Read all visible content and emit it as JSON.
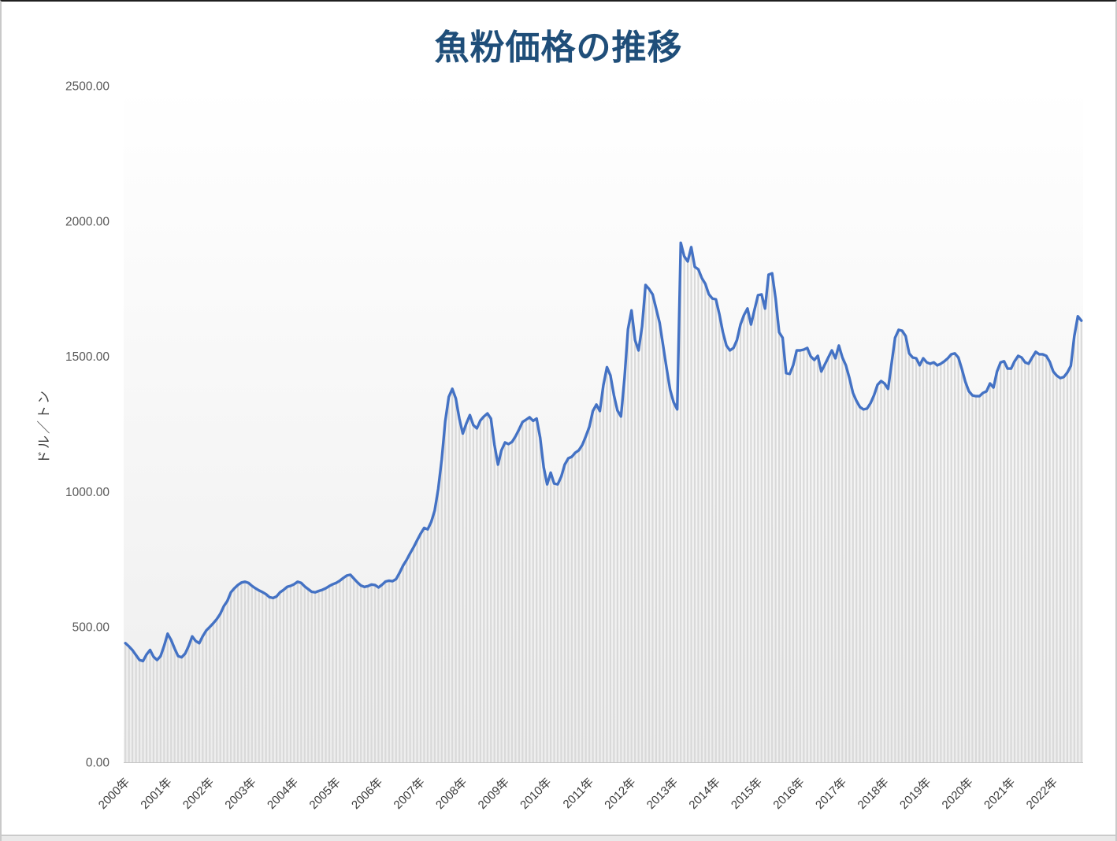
{
  "chart_data": {
    "type": "line",
    "title": "魚粉価格の推移",
    "ylabel": "ドル／トン",
    "xlabel": "",
    "ylim": [
      0,
      2500
    ],
    "grid": false,
    "legend_position": "none",
    "frequency": "monthly",
    "y_ticks": [
      "0.00",
      "500.00",
      "1000.00",
      "1500.00",
      "2000.00",
      "2500.00"
    ],
    "x_tick_labels": [
      "2000年",
      "2001年",
      "2002年",
      "2003年",
      "2004年",
      "2005年",
      "2006年",
      "2007年",
      "2008年",
      "2009年",
      "2010年",
      "2011年",
      "2012年",
      "2013年",
      "2014年",
      "2015年",
      "2016年",
      "2017年",
      "2018年",
      "2019年",
      "2020年",
      "2021年",
      "2022年"
    ],
    "x_tick_interval_months": 12,
    "series": [
      {
        "name": "魚粉価格",
        "unit": "ドル／トン",
        "first_month": "2000年1月",
        "last_month": "2022年9月",
        "monthly_values": [
          440,
          428,
          414,
          396,
          378,
          374,
          398,
          415,
          390,
          378,
          392,
          430,
          475,
          452,
          420,
          392,
          388,
          402,
          430,
          465,
          448,
          440,
          466,
          487,
          500,
          514,
          529,
          549,
          577,
          596,
          628,
          643,
          655,
          664,
          667,
          663,
          652,
          643,
          635,
          629,
          621,
          610,
          607,
          613,
          628,
          637,
          648,
          652,
          658,
          667,
          663,
          650,
          640,
          630,
          628,
          633,
          637,
          643,
          651,
          658,
          663,
          671,
          681,
          690,
          693,
          679,
          665,
          653,
          648,
          651,
          657,
          655,
          646,
          656,
          668,
          671,
          669,
          677,
          700,
          727,
          748,
          772,
          795,
          820,
          845,
          866,
          861,
          888,
          930,
          1010,
          1120,
          1260,
          1350,
          1380,
          1345,
          1270,
          1215,
          1252,
          1283,
          1246,
          1234,
          1263,
          1278,
          1289,
          1270,
          1173,
          1100,
          1153,
          1182,
          1176,
          1184,
          1205,
          1230,
          1258,
          1266,
          1275,
          1262,
          1270,
          1200,
          1090,
          1027,
          1070,
          1030,
          1027,
          1056,
          1100,
          1123,
          1129,
          1144,
          1153,
          1173,
          1205,
          1240,
          1298,
          1322,
          1298,
          1394,
          1460,
          1430,
          1356,
          1300,
          1278,
          1420,
          1600,
          1670,
          1560,
          1522,
          1610,
          1764,
          1749,
          1729,
          1677,
          1624,
          1540,
          1455,
          1375,
          1330,
          1304,
          1920,
          1870,
          1851,
          1904,
          1831,
          1822,
          1790,
          1768,
          1730,
          1714,
          1711,
          1656,
          1589,
          1540,
          1522,
          1531,
          1560,
          1618,
          1653,
          1677,
          1618,
          1672,
          1726,
          1729,
          1677,
          1802,
          1807,
          1714,
          1589,
          1569,
          1438,
          1435,
          1467,
          1522,
          1522,
          1525,
          1531,
          1500,
          1487,
          1502,
          1444,
          1470,
          1496,
          1522,
          1493,
          1540,
          1496,
          1467,
          1420,
          1365,
          1336,
          1313,
          1304,
          1307,
          1327,
          1356,
          1395,
          1409,
          1400,
          1380,
          1473,
          1569,
          1598,
          1595,
          1575,
          1511,
          1496,
          1493,
          1467,
          1493,
          1478,
          1473,
          1478,
          1467,
          1473,
          1482,
          1493,
          1508,
          1511,
          1496,
          1453,
          1406,
          1371,
          1356,
          1353,
          1353,
          1365,
          1371,
          1400,
          1385,
          1444,
          1478,
          1482,
          1455,
          1455,
          1482,
          1502,
          1496,
          1478,
          1473,
          1496,
          1517,
          1508,
          1508,
          1502,
          1480,
          1444,
          1429,
          1420,
          1424,
          1440,
          1465,
          1575,
          1648,
          1632
        ]
      }
    ],
    "colors": {
      "line": "#4472c4",
      "bars": "#d9d9d9",
      "plot_bg_top": "#ffffff",
      "plot_bg_bottom": "#eeeeee",
      "title": "#1f4e79",
      "y_tick_labels": "#595959",
      "x_tick_labels": "#3a3a3a",
      "axis_line": "#c6c6c6",
      "y_axis_title": "#404040"
    }
  }
}
